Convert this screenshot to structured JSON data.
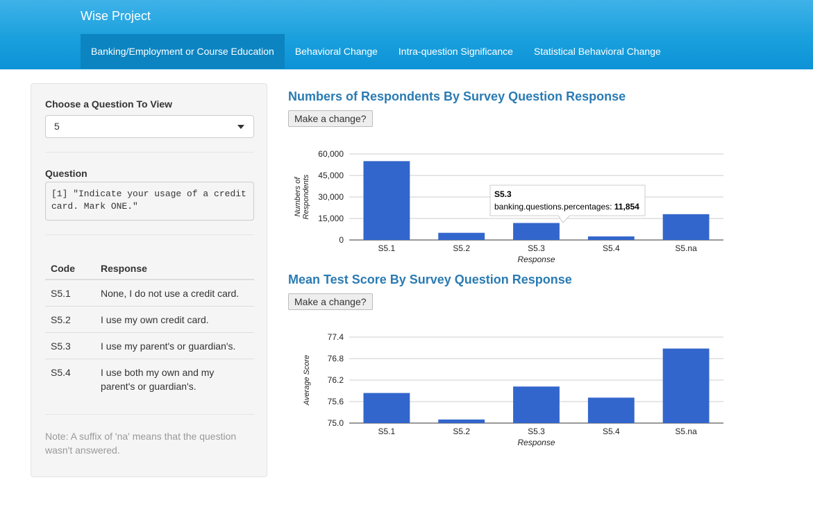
{
  "app": {
    "brand": "Wise Project",
    "tabs": [
      {
        "label": "Banking/Employment or Course Education",
        "active": true
      },
      {
        "label": "Behavioral Change",
        "active": false
      },
      {
        "label": "Intra-question Significance",
        "active": false
      },
      {
        "label": "Statistical Behavioral Change",
        "active": false
      }
    ]
  },
  "sidebar": {
    "choose_label": "Choose a Question To View",
    "selected_question": "5",
    "question_label": "Question",
    "question_text": "[1] \"Indicate your usage of a credit card. Mark ONE.\"",
    "table": {
      "headers": [
        "Code",
        "Response"
      ],
      "rows": [
        {
          "code": "S5.1",
          "response": "None, I do not use a credit card."
        },
        {
          "code": "S5.2",
          "response": "I use my own credit card."
        },
        {
          "code": "S5.3",
          "response": "I use my parent's or guardian's."
        },
        {
          "code": "S5.4",
          "response": "I use both my own and my parent's or guardian's."
        }
      ]
    },
    "note": "Note: A suffix of 'na' means that the question wasn't answered."
  },
  "main": {
    "chart1_title": "Numbers of Respondents By Survey Question Response",
    "chart2_title": "Mean Test Score By Survey Question Response",
    "change_button": "Make a change?"
  },
  "colors": {
    "bar": "#3366cc",
    "title": "#2a7bb3",
    "navbar": "#1aa0dd",
    "active_tab": "#0b84c1"
  },
  "chart_data": [
    {
      "type": "bar",
      "categories": [
        "S5.1",
        "S5.2",
        "S5.3",
        "S5.4",
        "S5.na"
      ],
      "values": [
        55000,
        5000,
        11854,
        2500,
        18000
      ],
      "xlabel": "Response",
      "ylabel": "Numbers of Respondents",
      "ylim": [
        0,
        60000
      ],
      "yticks": [
        0,
        15000,
        30000,
        45000,
        60000
      ],
      "ytick_labels": [
        "0",
        "15,000",
        "30,000",
        "45,000",
        "60,000"
      ],
      "grid": true,
      "tooltip": {
        "category": "S5.3",
        "series": "banking.questions.percentages",
        "value_label": "11,854"
      }
    },
    {
      "type": "bar",
      "categories": [
        "S5.1",
        "S5.2",
        "S5.3",
        "S5.4",
        "S5.na"
      ],
      "values": [
        75.84,
        75.1,
        76.02,
        75.71,
        77.08
      ],
      "xlabel": "Response",
      "ylabel": "Average Score",
      "ylim": [
        75.0,
        77.4
      ],
      "yticks": [
        75.0,
        75.6,
        76.2,
        76.8,
        77.4
      ],
      "ytick_labels": [
        "75.0",
        "75.6",
        "76.2",
        "76.8",
        "77.4"
      ],
      "grid": true
    }
  ]
}
